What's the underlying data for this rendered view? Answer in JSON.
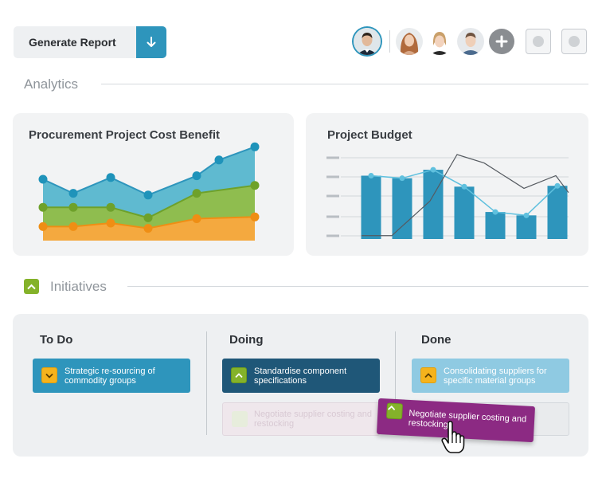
{
  "toolbar": {
    "generate_report_label": "Generate Report",
    "download_icon": "arrow-down-icon"
  },
  "users": [
    {
      "name": "user-1",
      "selected": true
    },
    {
      "name": "user-2",
      "selected": false
    },
    {
      "name": "user-3",
      "selected": false
    },
    {
      "name": "user-4",
      "selected": false
    }
  ],
  "sections": {
    "analytics": "Analytics",
    "initiatives": "Initiatives"
  },
  "cards": {
    "cost_benefit_title": "Procurement Project Cost Benefit",
    "budget_title": "Project Budget"
  },
  "chart_data": [
    {
      "type": "area",
      "title": "Procurement Project Cost Benefit",
      "x": [
        1,
        2,
        3,
        4,
        5,
        6,
        7,
        8
      ],
      "ylim": [
        0,
        100
      ],
      "series": [
        {
          "color": "#4fb3c9",
          "values": [
            70,
            54,
            72,
            52,
            74,
            92,
            107,
            null
          ]
        },
        {
          "color": "#86b73c",
          "values": [
            38,
            38,
            38,
            26,
            54,
            63,
            null,
            null
          ]
        },
        {
          "color": "#f29f2c",
          "values": [
            16,
            16,
            20,
            14,
            25,
            27,
            null,
            null
          ]
        }
      ]
    },
    {
      "type": "bar",
      "title": "Project Budget",
      "categories": [
        "1",
        "2",
        "3",
        "4",
        "5",
        "6",
        "7"
      ],
      "ylim": [
        0,
        100
      ],
      "series": [
        {
          "color": "#2e95bc",
          "values": [
            75,
            72,
            82,
            62,
            32,
            28,
            63
          ]
        },
        {
          "color": "#4fb3c9",
          "values": [
            75,
            72,
            82,
            62,
            32,
            28,
            63
          ]
        },
        {
          "color": "#555a60",
          "values": [
            4,
            4,
            45,
            100,
            90,
            60,
            75
          ]
        }
      ]
    }
  ],
  "board": {
    "columns": {
      "todo": "To Do",
      "doing": "Doing",
      "done": "Done"
    },
    "tasks": {
      "todo_1": "Strategic re-sourcing of commodity groups",
      "doing_1": "Standardise component specifications",
      "doing_ghost": "Negotiate supplier costing and restocking",
      "done_1": "Consolidating suppliers for specific material groups",
      "dragging": "Negotiate supplier costing and restocking"
    },
    "colors": {
      "todo": "#2e95bc",
      "doing": "#1f5778",
      "done": "#8fcae2",
      "dragging": "#8c2a83"
    }
  }
}
